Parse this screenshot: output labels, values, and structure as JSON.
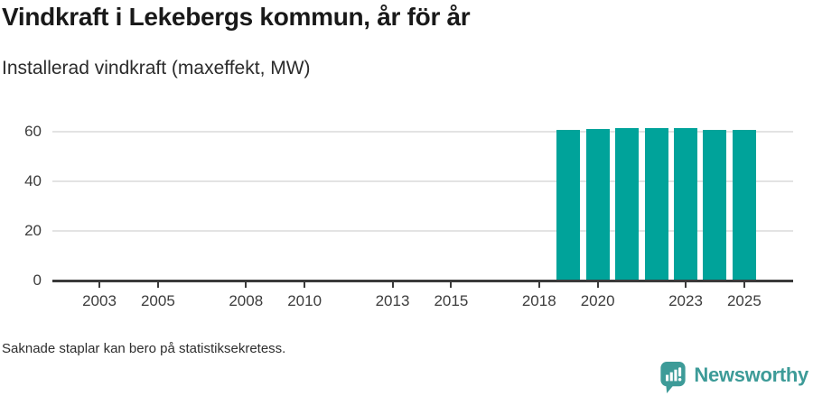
{
  "chart_data": {
    "type": "bar",
    "title": "Vindkraft i Lekebergs kommun, år för år",
    "subtitle": "Installerad vindkraft (maxeffekt, MW)",
    "xlabel": "",
    "ylabel": "Installerad vindkraft (maxeffekt, MW)",
    "unit": "MW",
    "categories": [
      2019,
      2020,
      2021,
      2022,
      2023,
      2024,
      2025
    ],
    "values": [
      60.8,
      61.0,
      61.6,
      61.3,
      61.6,
      60.9,
      60.9
    ],
    "note": "Bars only exist for years 2019-2025; earlier years have no bars",
    "x_tick_labels": [
      "2003",
      "2005",
      "2008",
      "2010",
      "2013",
      "2015",
      "2018",
      "2020",
      "2023",
      "2025"
    ],
    "x_tick_years": [
      2003,
      2005,
      2008,
      2010,
      2013,
      2015,
      2018,
      2020,
      2023,
      2025
    ],
    "y_ticks": [
      0,
      20,
      40,
      60
    ],
    "ylim": [
      0,
      66
    ],
    "xlim": [
      2001.4,
      2026.7
    ],
    "grid": "horizontal gridlines at 20/40/60, dark baseline at 0",
    "legend": "none",
    "bar_color": "#00a39a",
    "gridline_color": "#e3e3e3",
    "axis_color": "#3a3a3a"
  },
  "footer": {
    "note": "Saknade staplar kan bero på statistiksekretess."
  },
  "brand": {
    "wordmark": "Newsworthy",
    "logo_icon": "speech-bubble-bar-chart-icon",
    "color": "#3d9b98"
  }
}
